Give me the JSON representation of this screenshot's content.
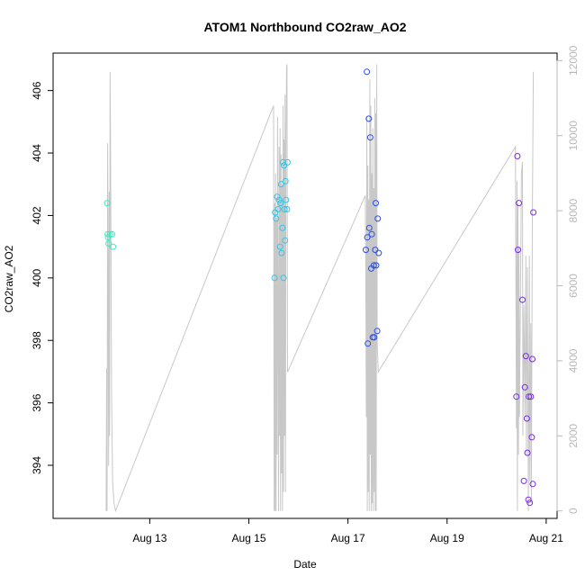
{
  "chart_data": {
    "type": "scatter",
    "title": "ATOM1 Northbound CO2raw_AO2",
    "xlabel": "Date",
    "ylabel": "CO2raw_AO2",
    "x_unit": "days since Aug 12",
    "xlim": [
      -0.95,
      9.22
    ],
    "ylim": [
      392.3,
      407.2
    ],
    "y2lim": [
      -200,
      12200
    ],
    "x_ticks": [
      {
        "value": 1,
        "label": "Aug 13"
      },
      {
        "value": 3,
        "label": "Aug 15"
      },
      {
        "value": 5,
        "label": "Aug 17"
      },
      {
        "value": 7,
        "label": "Aug 19"
      },
      {
        "value": 9,
        "label": "Aug 21"
      }
    ],
    "y_ticks": [
      394,
      396,
      398,
      400,
      402,
      404,
      406
    ],
    "y2_ticks": [
      0,
      2000,
      4000,
      6000,
      8000,
      10000,
      12000
    ],
    "colors": {
      "series_aug12": "#3de8c0",
      "series_aug15": "#33c6e8",
      "series_aug17": "#2b4de8",
      "series_aug20": "#7a2be8",
      "line": "#c8c8c8",
      "right_axis": "#b8b8b8"
    },
    "series": [
      {
        "color_key": "series_aug12",
        "points": [
          [
            0.14,
            402.4
          ],
          [
            0.15,
            401.4
          ],
          [
            0.16,
            401.3
          ],
          [
            0.17,
            401.1
          ],
          [
            0.2,
            401.4
          ],
          [
            0.24,
            401.4
          ],
          [
            0.26,
            401.0
          ]
        ]
      },
      {
        "color_key": "series_aug15",
        "points": [
          [
            3.52,
            400.0
          ],
          [
            3.53,
            402.1
          ],
          [
            3.55,
            401.9
          ],
          [
            3.57,
            402.6
          ],
          [
            3.59,
            402.2
          ],
          [
            3.61,
            402.5
          ],
          [
            3.63,
            401.0
          ],
          [
            3.64,
            402.4
          ],
          [
            3.65,
            403.0
          ],
          [
            3.66,
            400.8
          ],
          [
            3.68,
            401.6
          ],
          [
            3.69,
            403.7
          ],
          [
            3.7,
            400.0
          ],
          [
            3.71,
            403.6
          ],
          [
            3.72,
            402.2
          ],
          [
            3.74,
            403.1
          ],
          [
            3.75,
            402.5
          ],
          [
            3.77,
            402.2
          ],
          [
            3.78,
            403.7
          ],
          [
            3.73,
            401.2
          ]
        ]
      },
      {
        "color_key": "series_aug17",
        "points": [
          [
            5.36,
            400.9
          ],
          [
            5.38,
            406.6
          ],
          [
            5.39,
            401.3
          ],
          [
            5.4,
            397.9
          ],
          [
            5.42,
            405.1
          ],
          [
            5.43,
            401.6
          ],
          [
            5.45,
            404.5
          ],
          [
            5.47,
            400.3
          ],
          [
            5.48,
            401.4
          ],
          [
            5.5,
            398.1
          ],
          [
            5.52,
            400.4
          ],
          [
            5.53,
            398.1
          ],
          [
            5.55,
            400.9
          ],
          [
            5.56,
            402.4
          ],
          [
            5.57,
            400.4
          ],
          [
            5.59,
            398.3
          ],
          [
            5.6,
            401.9
          ],
          [
            5.62,
            400.8
          ]
        ]
      },
      {
        "color_key": "series_aug20",
        "points": [
          [
            8.4,
            396.2
          ],
          [
            8.42,
            403.9
          ],
          [
            8.43,
            400.9
          ],
          [
            8.45,
            402.4
          ],
          [
            8.52,
            399.3
          ],
          [
            8.55,
            393.5
          ],
          [
            8.57,
            396.5
          ],
          [
            8.59,
            397.5
          ],
          [
            8.61,
            395.5
          ],
          [
            8.62,
            394.4
          ],
          [
            8.64,
            392.9
          ],
          [
            8.65,
            396.2
          ],
          [
            8.67,
            392.8
          ],
          [
            8.69,
            396.2
          ],
          [
            8.71,
            394.9
          ],
          [
            8.72,
            397.4
          ],
          [
            8.73,
            393.4
          ],
          [
            8.74,
            402.1
          ]
        ]
      }
    ],
    "line_series": {
      "axis": "right",
      "points": [
        [
          0.12,
          0
        ],
        [
          0.13,
          3800
        ],
        [
          0.14,
          0
        ],
        [
          0.15,
          9800
        ],
        [
          0.16,
          6000
        ],
        [
          0.17,
          1200
        ],
        [
          0.18,
          8500
        ],
        [
          0.19,
          2000
        ],
        [
          0.2,
          11700
        ],
        [
          0.21,
          9500
        ],
        [
          0.23,
          3000
        ],
        [
          0.25,
          800
        ],
        [
          0.28,
          200
        ],
        [
          0.31,
          0
        ],
        [
          3.5,
          10800
        ],
        [
          3.51,
          0
        ],
        [
          3.52,
          8200
        ],
        [
          3.53,
          0
        ],
        [
          3.54,
          9000
        ],
        [
          3.55,
          0
        ],
        [
          3.56,
          7800
        ],
        [
          3.57,
          1500
        ],
        [
          3.58,
          10500
        ],
        [
          3.6,
          0
        ],
        [
          3.61,
          9700
        ],
        [
          3.62,
          2000
        ],
        [
          3.63,
          10200
        ],
        [
          3.64,
          0
        ],
        [
          3.65,
          9500
        ],
        [
          3.66,
          1000
        ],
        [
          3.67,
          8700
        ],
        [
          3.68,
          0
        ],
        [
          3.69,
          10800
        ],
        [
          3.7,
          500
        ],
        [
          3.71,
          9900
        ],
        [
          3.72,
          2000
        ],
        [
          3.73,
          11100
        ],
        [
          3.74,
          500
        ],
        [
          3.75,
          10000
        ],
        [
          3.76,
          11800
        ],
        [
          3.77,
          11900
        ],
        [
          3.78,
          3700
        ],
        [
          5.35,
          8400
        ],
        [
          5.36,
          6000
        ],
        [
          5.37,
          2500
        ],
        [
          5.38,
          10500
        ],
        [
          5.39,
          0
        ],
        [
          5.4,
          9200
        ],
        [
          5.41,
          500
        ],
        [
          5.42,
          8300
        ],
        [
          5.43,
          0
        ],
        [
          5.44,
          11500
        ],
        [
          5.45,
          1500
        ],
        [
          5.46,
          10800
        ],
        [
          5.47,
          0
        ],
        [
          5.48,
          9000
        ],
        [
          5.49,
          200
        ],
        [
          5.5,
          10200
        ],
        [
          5.51,
          0
        ],
        [
          5.52,
          8600
        ],
        [
          5.53,
          500
        ],
        [
          5.54,
          11000
        ],
        [
          5.55,
          0
        ],
        [
          5.56,
          10600
        ],
        [
          5.57,
          0
        ],
        [
          5.58,
          11900
        ],
        [
          5.59,
          4500
        ],
        [
          5.61,
          3700
        ],
        [
          8.38,
          9700
        ],
        [
          8.39,
          5500
        ],
        [
          8.4,
          2200
        ],
        [
          8.41,
          8800
        ],
        [
          8.42,
          0
        ],
        [
          8.43,
          8200
        ],
        [
          8.44,
          1500
        ],
        [
          8.45,
          7000
        ],
        [
          8.46,
          2500
        ],
        [
          8.5,
          9000
        ],
        [
          8.52,
          9300
        ],
        [
          8.53,
          2000
        ],
        [
          8.55,
          5500
        ],
        [
          8.57,
          2500
        ],
        [
          8.59,
          6800
        ],
        [
          8.6,
          1500
        ],
        [
          8.62,
          6500
        ],
        [
          8.64,
          0
        ],
        [
          8.66,
          6800
        ],
        [
          8.67,
          800
        ],
        [
          8.69,
          5000
        ],
        [
          8.7,
          200
        ],
        [
          8.72,
          7800
        ],
        [
          8.74,
          11700
        ]
      ]
    }
  }
}
